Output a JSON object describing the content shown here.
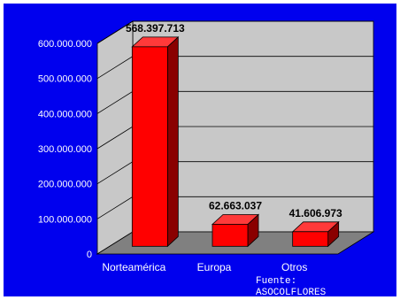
{
  "chart_data": {
    "type": "bar",
    "categories": [
      "Norteamérica",
      "Europa",
      "Otros"
    ],
    "values": [
      568397713,
      62663037,
      41606973
    ],
    "data_labels": [
      "568.397.713",
      "62.663.037",
      "41.606.973"
    ],
    "ylim": [
      0,
      600000000
    ],
    "yticks": [
      "0",
      "100.000.000",
      "200.000.000",
      "300.000.000",
      "400.000.000",
      "500.000.000",
      "600.000.000"
    ],
    "grid": true,
    "three_d": true,
    "colors": {
      "background": "#0000ee",
      "wall": "#c8c8c8",
      "floor": "#808080",
      "bar_front": "#ff0000",
      "bar_top": "#ff3a3a",
      "bar_side": "#8a0000"
    }
  },
  "source": {
    "line1": "Fuente:",
    "line2": "ASOCOLFLORES"
  }
}
